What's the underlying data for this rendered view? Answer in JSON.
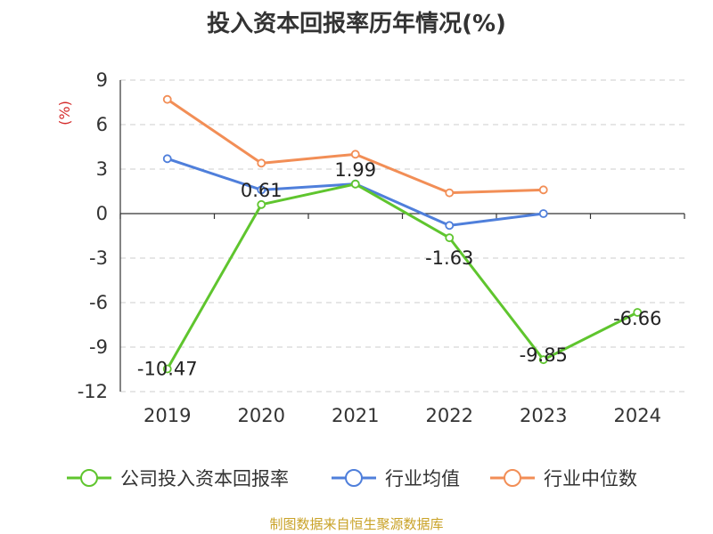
{
  "chart_data": {
    "type": "line",
    "title": "投入资本回报率历年情况(%)",
    "ylabel": "(%)",
    "categories": [
      "2019",
      "2020",
      "2021",
      "2022",
      "2023",
      "2024"
    ],
    "ylim": [
      -12,
      9
    ],
    "yticks": [
      9,
      6,
      3,
      0,
      -3,
      -6,
      -9,
      -12
    ],
    "grid": true,
    "legend_position": "bottom",
    "series": [
      {
        "name": "公司投入资本回报率",
        "color": "#5fc52e",
        "values": [
          -10.47,
          0.61,
          1.99,
          -1.63,
          -9.85,
          -6.66
        ],
        "labels": [
          "-10.47",
          "0.61",
          "1.99",
          "-1.63",
          "-9.85",
          "-6.66"
        ]
      },
      {
        "name": "行业均值",
        "color": "#4f7fdb",
        "values": [
          3.7,
          1.6,
          2.0,
          -0.8,
          0.0,
          null
        ]
      },
      {
        "name": "行业中位数",
        "color": "#f28e56",
        "values": [
          7.7,
          3.4,
          4.0,
          1.4,
          1.6,
          null
        ]
      }
    ]
  },
  "source": "制图数据来自恒生聚源数据库"
}
